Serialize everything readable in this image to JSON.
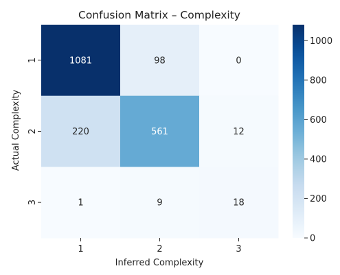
{
  "chart_data": {
    "type": "heatmap",
    "title": "Confusion Matrix – Complexity",
    "xlabel": "Inferred Complexity",
    "ylabel": "Actual Complexity",
    "x_categories": [
      "1",
      "2",
      "3"
    ],
    "y_categories": [
      "1",
      "2",
      "3"
    ],
    "values": [
      [
        1081,
        98,
        0
      ],
      [
        220,
        561,
        12
      ],
      [
        1,
        9,
        18
      ]
    ],
    "colorscale": "Blues",
    "colorbar": {
      "min": 0,
      "max": 1081,
      "ticks": [
        0,
        200,
        400,
        600,
        800,
        1000
      ]
    }
  }
}
